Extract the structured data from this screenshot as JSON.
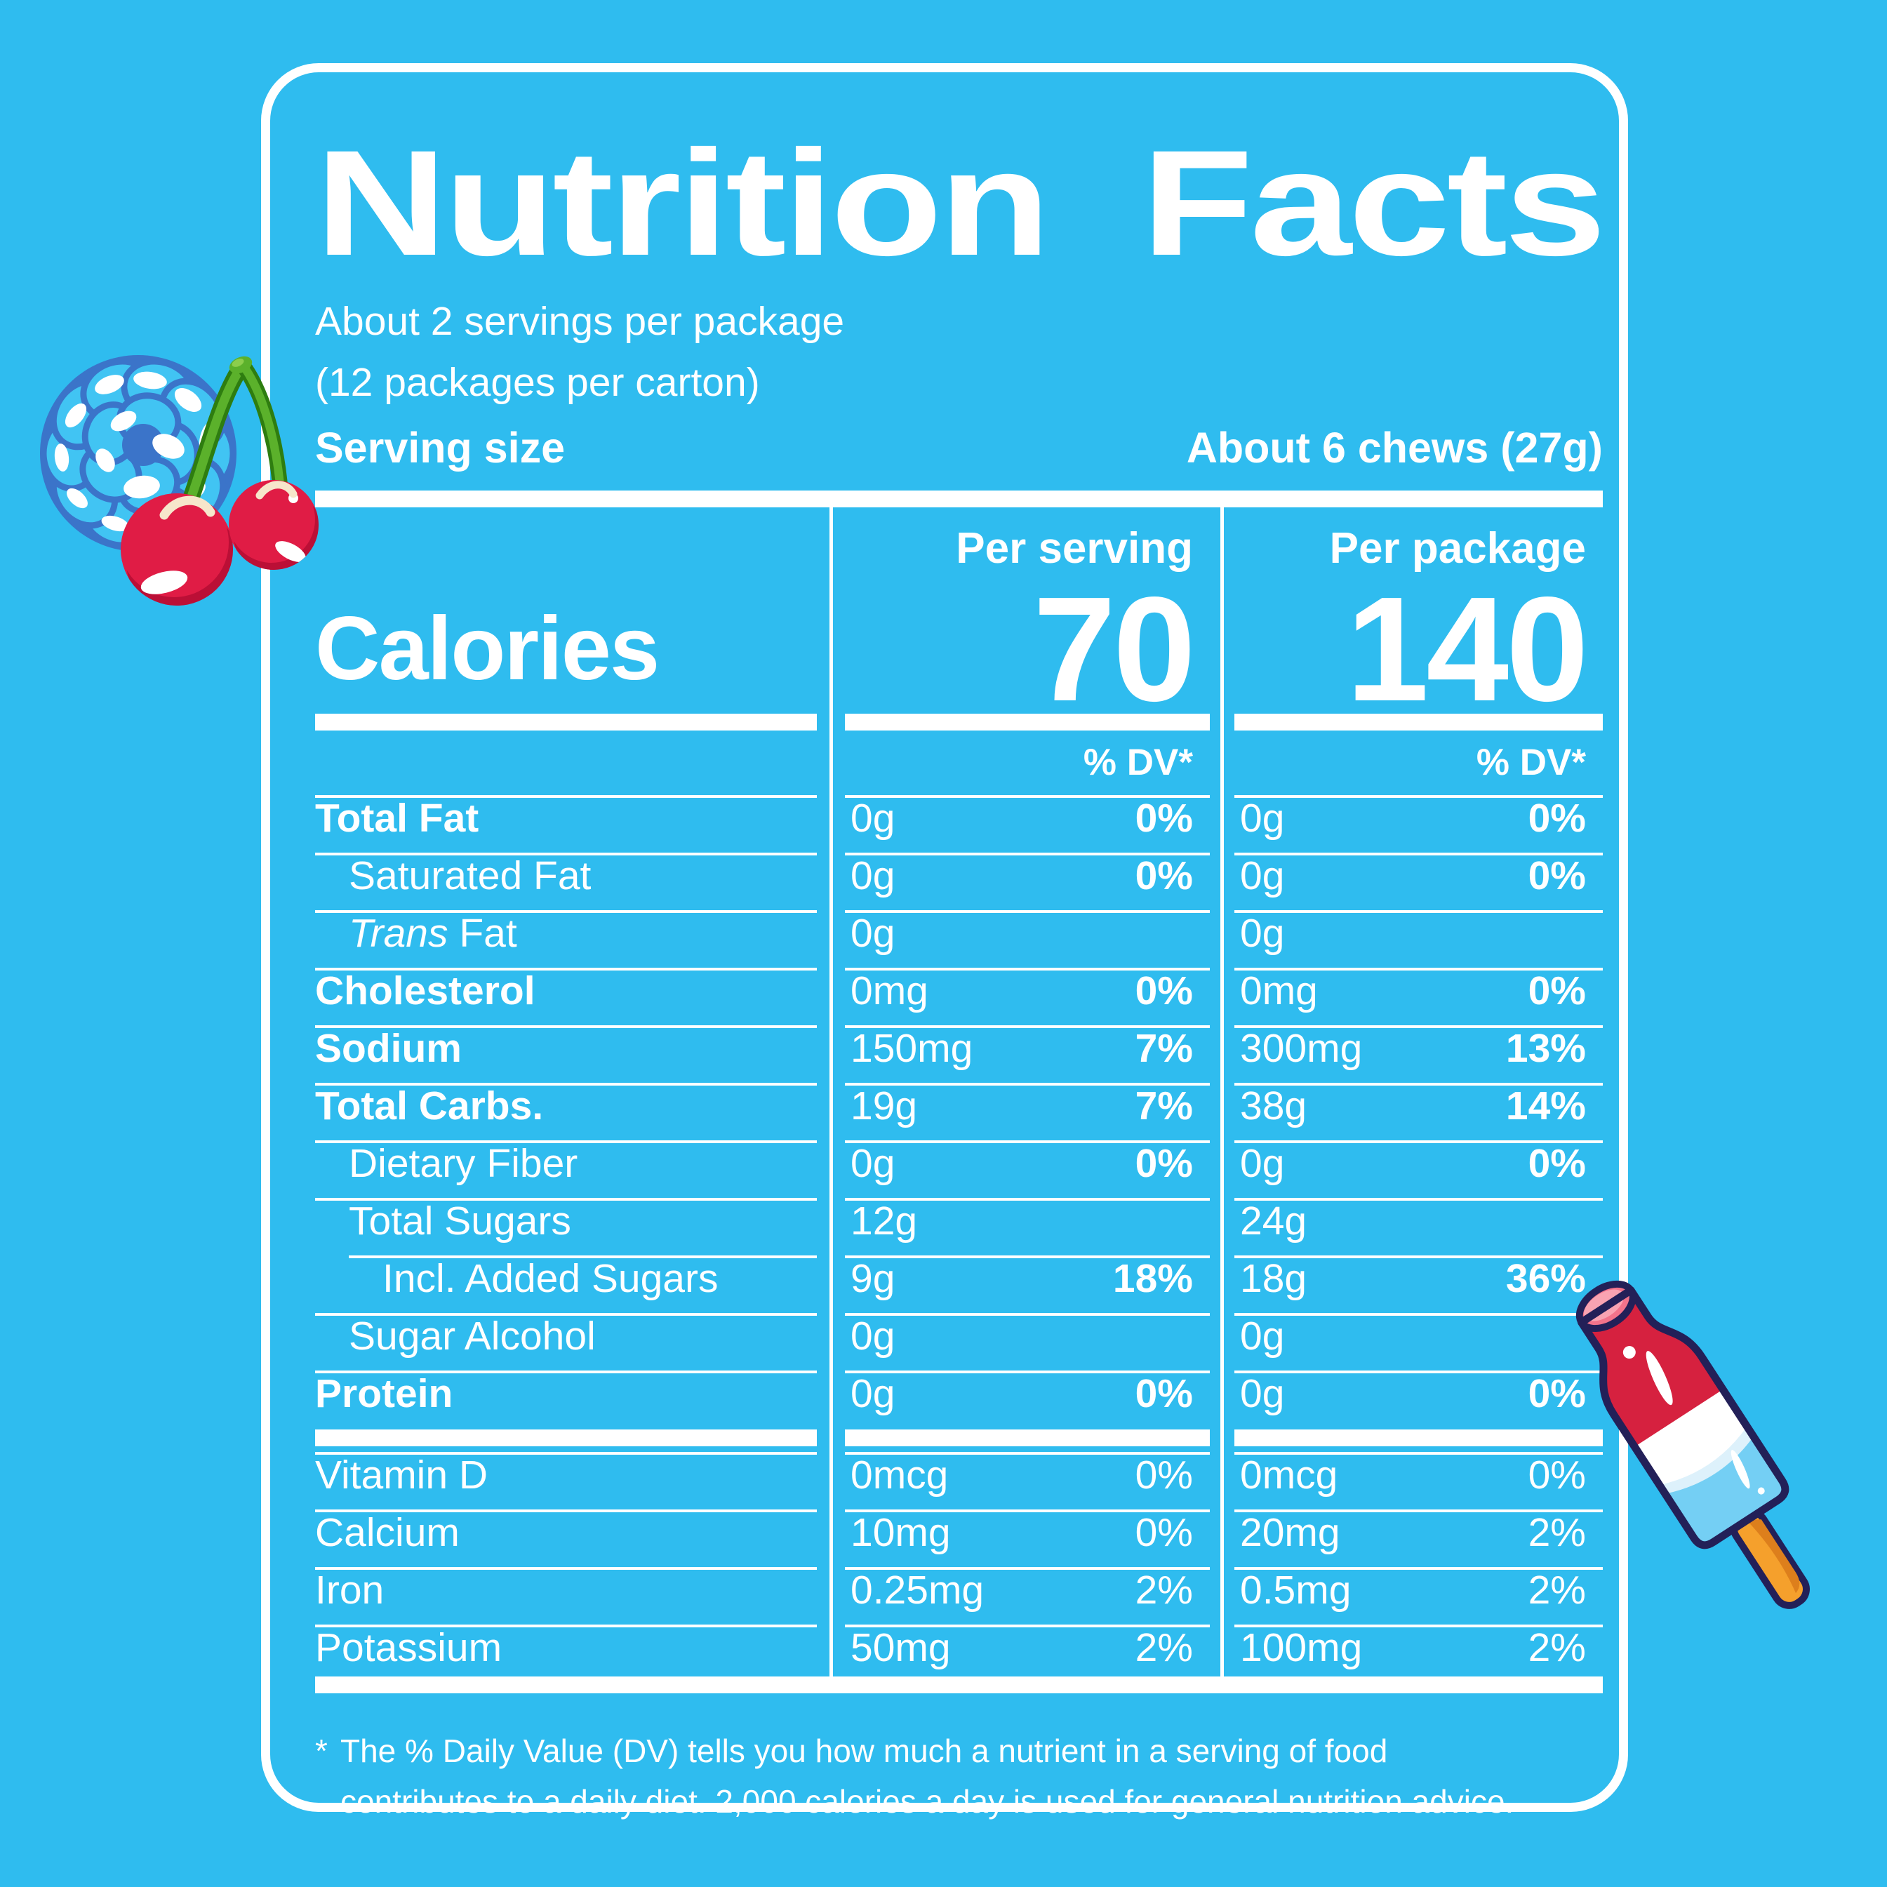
{
  "colors": {
    "background": "#2FBCEF",
    "text": "#FFFFFF",
    "berry_fill": "#41C4F3",
    "berry_outline": "#3B74C9",
    "cherry_red": "#E01C45",
    "cherry_shadow": "#BB0F36",
    "cherry_cream": "#F6E6CB",
    "stem_green": "#5BB12B",
    "stem_dark_green": "#2E7D10",
    "popsicle_red": "#D6213F",
    "popsicle_pink": "#F2738B",
    "popsicle_blue": "#74CFF4",
    "popsicle_stick_orange": "#F5A02C",
    "popsicle_outline": "#232058"
  },
  "title": {
    "word1": "Nutrition",
    "word2": "Facts"
  },
  "header": {
    "servings_line1": "About 2 servings per package",
    "servings_line2": "(12 packages per carton)",
    "serving_size_label": "Serving size",
    "serving_size_value": "About 6 chews (27g)"
  },
  "table": {
    "col_headers": [
      "Per serving",
      "Per package"
    ],
    "calories_label": "Calories",
    "calories_per_serving": "70",
    "calories_per_package": "140",
    "dv_header": "% DV*",
    "rows": [
      {
        "label": "Total Fat",
        "italic": "",
        "indent": 0,
        "bold": true,
        "ps_amt": "0g",
        "ps_pct": "0%",
        "pp_amt": "0g",
        "pp_pct": "0%"
      },
      {
        "label": "Saturated Fat",
        "italic": "",
        "indent": 1,
        "bold": false,
        "ps_amt": "0g",
        "ps_pct": "0%",
        "pp_amt": "0g",
        "pp_pct": "0%"
      },
      {
        "label": " Fat",
        "italic": "Trans",
        "indent": 1,
        "bold": false,
        "ps_amt": "0g",
        "ps_pct": "",
        "pp_amt": "0g",
        "pp_pct": ""
      },
      {
        "label": "Cholesterol",
        "italic": "",
        "indent": 0,
        "bold": true,
        "ps_amt": "0mg",
        "ps_pct": "0%",
        "pp_amt": "0mg",
        "pp_pct": "0%"
      },
      {
        "label": "Sodium",
        "italic": "",
        "indent": 0,
        "bold": true,
        "ps_amt": "150mg",
        "ps_pct": "7%",
        "pp_amt": "300mg",
        "pp_pct": "13%"
      },
      {
        "label": "Total Carbs.",
        "italic": "",
        "indent": 0,
        "bold": true,
        "ps_amt": "19g",
        "ps_pct": "7%",
        "pp_amt": "38g",
        "pp_pct": "14%"
      },
      {
        "label": "Dietary Fiber",
        "italic": "",
        "indent": 1,
        "bold": false,
        "ps_amt": "0g",
        "ps_pct": "0%",
        "pp_amt": "0g",
        "pp_pct": "0%"
      },
      {
        "label": "Total Sugars",
        "italic": "",
        "indent": 1,
        "bold": false,
        "ps_amt": "12g",
        "ps_pct": "",
        "pp_amt": "24g",
        "pp_pct": ""
      },
      {
        "label": "Incl. Added Sugars",
        "italic": "",
        "indent": 2,
        "bold": false,
        "lineIndent": true,
        "ps_amt": "9g",
        "ps_pct": "18%",
        "pp_amt": "18g",
        "pp_pct": "36%"
      },
      {
        "label": "Sugar Alcohol",
        "italic": "",
        "indent": 1,
        "bold": false,
        "ps_amt": "0g",
        "ps_pct": "",
        "pp_amt": "0g",
        "pp_pct": ""
      },
      {
        "label": "Protein",
        "italic": "",
        "indent": 0,
        "bold": true,
        "ps_amt": "0g",
        "ps_pct": "0%",
        "pp_amt": "0g",
        "pp_pct": "0%"
      }
    ],
    "vitamins": [
      {
        "label": "Vitamin D",
        "ps_amt": "0mcg",
        "ps_pct": "0%",
        "pp_amt": "0mcg",
        "pp_pct": "0%"
      },
      {
        "label": "Calcium",
        "ps_amt": "10mg",
        "ps_pct": "0%",
        "pp_amt": "20mg",
        "pp_pct": "2%"
      },
      {
        "label": "Iron",
        "ps_amt": "0.25mg",
        "ps_pct": "2%",
        "pp_amt": "0.5mg",
        "pp_pct": "2%"
      },
      {
        "label": "Potassium",
        "ps_amt": "50mg",
        "ps_pct": "2%",
        "pp_amt": "100mg",
        "pp_pct": "2%"
      }
    ]
  },
  "footnote": {
    "star": "*",
    "line1": "The % Daily Value (DV) tells you how much a nutrient in a serving of food",
    "line2": "contributes to a daily diet. 2,000 calories a day is used for general nutrition advice."
  },
  "decorations": {
    "left": "blue-raspberry-with-cherries-illustration",
    "right": "rocket-popsicle-illustration"
  }
}
